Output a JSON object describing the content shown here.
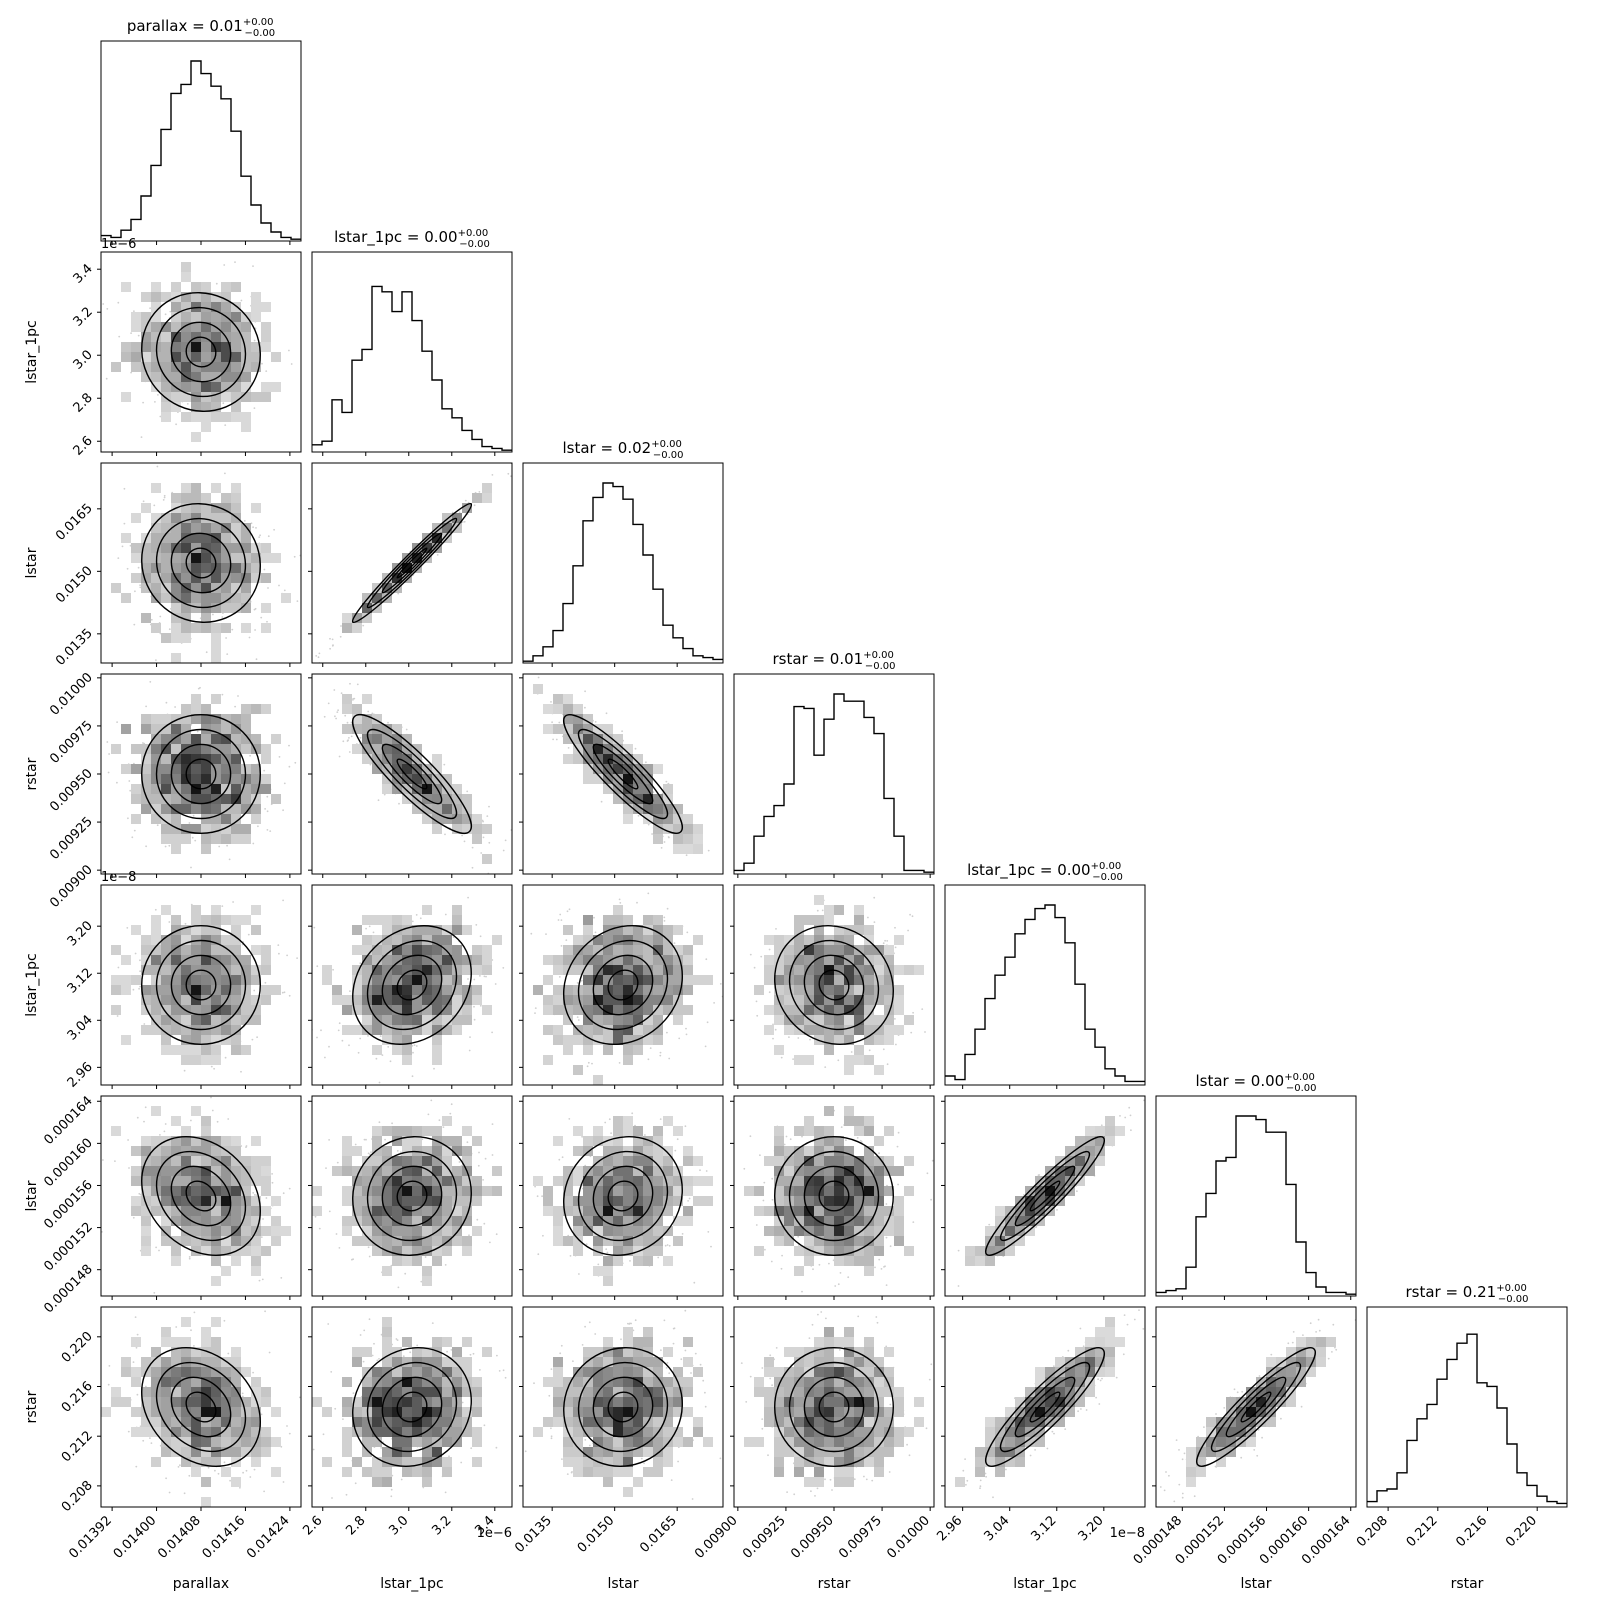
{
  "chart_data": {
    "type": "corner",
    "parameters": [
      {
        "name": "parallax",
        "title_value": "0.01",
        "err_plus": "+0.00",
        "err_minus": "−0.00",
        "axis_label": "parallax",
        "range": [
          0.0139,
          0.01426
        ],
        "ticks": [
          0.01392,
          0.014,
          0.01408,
          0.01416,
          0.01424
        ],
        "tick_labels": [
          "0.01392",
          "0.01400",
          "0.01408",
          "0.01416",
          "0.01424"
        ],
        "offset": "",
        "hist": [
          0.03,
          0.02,
          0.06,
          0.12,
          0.25,
          0.42,
          0.62,
          0.82,
          0.87,
          1.0,
          0.93,
          0.86,
          0.79,
          0.61,
          0.36,
          0.2,
          0.1,
          0.05,
          0.02,
          0.01
        ]
      },
      {
        "name": "lstar_1pc",
        "title_value": "0.00",
        "err_plus": "+0.00",
        "err_minus": "−0.00",
        "axis_label": "lstar_1pc",
        "range": [
          2.55,
          3.48
        ],
        "ticks": [
          2.6,
          2.8,
          3.0,
          3.2,
          3.4
        ],
        "tick_labels": [
          "2.6",
          "2.8",
          "3.0",
          "3.2",
          "3.4"
        ],
        "offset": "1e−6",
        "hist": [
          0.04,
          0.06,
          0.29,
          0.22,
          0.51,
          0.57,
          0.92,
          0.89,
          0.78,
          0.89,
          0.73,
          0.56,
          0.4,
          0.24,
          0.19,
          0.12,
          0.07,
          0.03,
          0.02,
          0.01
        ]
      },
      {
        "name": "lstar",
        "title_value": "0.02",
        "err_plus": "+0.00",
        "err_minus": "−0.00",
        "axis_label": "lstar",
        "range": [
          0.0128,
          0.0176
        ],
        "ticks": [
          0.0135,
          0.015,
          0.0165
        ],
        "tick_labels": [
          "0.0135",
          "0.0150",
          "0.0165"
        ],
        "offset": "",
        "hist": [
          0.01,
          0.04,
          0.09,
          0.18,
          0.33,
          0.54,
          0.79,
          0.92,
          1.0,
          0.98,
          0.91,
          0.77,
          0.6,
          0.41,
          0.21,
          0.14,
          0.08,
          0.04,
          0.03,
          0.02
        ]
      },
      {
        "name": "rstar",
        "title_value": "0.01",
        "err_plus": "+0.00",
        "err_minus": "−0.00",
        "axis_label": "rstar",
        "range": [
          0.00898,
          0.01002
        ],
        "ticks": [
          0.009,
          0.00925,
          0.0095,
          0.00975,
          0.01
        ],
        "tick_labels": [
          "0.00900",
          "0.00925",
          "0.00950",
          "0.00975",
          "0.01000"
        ],
        "offset": "",
        "hist": [
          0.02,
          0.06,
          0.21,
          0.32,
          0.38,
          0.5,
          0.93,
          0.92,
          0.66,
          0.86,
          1.0,
          0.96,
          0.96,
          0.87,
          0.78,
          0.42,
          0.21,
          0.02,
          0.02,
          0.01
        ]
      },
      {
        "name": "lstar_1pc",
        "title_value": "0.00",
        "err_plus": "+0.00",
        "err_minus": "−0.00",
        "axis_label": "lstar_1pc",
        "range": [
          2.93,
          3.27
        ],
        "ticks": [
          2.96,
          3.04,
          3.12,
          3.2
        ],
        "tick_labels": [
          "2.96",
          "3.04",
          "3.12",
          "3.20"
        ],
        "offset": "1e−8",
        "hist": [
          0.05,
          0.03,
          0.17,
          0.31,
          0.48,
          0.61,
          0.71,
          0.84,
          0.92,
          0.98,
          1.0,
          0.93,
          0.79,
          0.56,
          0.31,
          0.21,
          0.09,
          0.05,
          0.02,
          0.02
        ]
      },
      {
        "name": "lstar",
        "title_value": "0.00",
        "err_plus": "+0.00",
        "err_minus": "−0.00",
        "axis_label": "lstar",
        "range": [
          0.0001455,
          0.0001645
        ],
        "ticks": [
          0.000148,
          0.000152,
          0.000156,
          0.00016,
          0.000164
        ],
        "tick_labels": [
          "0.000148",
          "0.000152",
          "0.000156",
          "0.000160",
          "0.000164"
        ],
        "offset": "",
        "hist": [
          0.02,
          0.03,
          0.04,
          0.16,
          0.44,
          0.57,
          0.75,
          0.77,
          1.0,
          1.0,
          0.98,
          0.91,
          0.91,
          0.62,
          0.3,
          0.13,
          0.05,
          0.02,
          0.02,
          0.01
        ]
      },
      {
        "name": "rstar",
        "title_value": "0.21",
        "err_plus": "+0.00",
        "err_minus": "−0.00",
        "axis_label": "rstar",
        "range": [
          0.2063,
          0.2224
        ],
        "ticks": [
          0.208,
          0.212,
          0.216,
          0.22
        ],
        "tick_labels": [
          "0.208",
          "0.212",
          "0.216",
          "0.220"
        ],
        "offset": "",
        "hist": [
          0.03,
          0.09,
          0.1,
          0.19,
          0.37,
          0.49,
          0.57,
          0.71,
          0.82,
          0.91,
          0.96,
          0.69,
          0.67,
          0.55,
          0.35,
          0.19,
          0.12,
          0.06,
          0.03,
          0.02
        ]
      }
    ],
    "correlations": [
      [
        1,
        0,
        0,
        0,
        0,
        0,
        0
      ],
      [
        -0.05,
        1,
        0,
        0,
        0,
        0,
        0
      ],
      [
        -0.05,
        0.99,
        1,
        0,
        0,
        0,
        0
      ],
      [
        0.0,
        -0.88,
        -0.9,
        1,
        0,
        0,
        0
      ],
      [
        0.0,
        0.2,
        0.15,
        -0.1,
        1,
        0,
        0
      ],
      [
        -0.25,
        0.05,
        0.1,
        0.0,
        0.94,
        1,
        0
      ],
      [
        -0.25,
        0.1,
        0.05,
        0.0,
        0.9,
        0.92,
        1
      ]
    ],
    "grid": false,
    "legend": "none"
  }
}
